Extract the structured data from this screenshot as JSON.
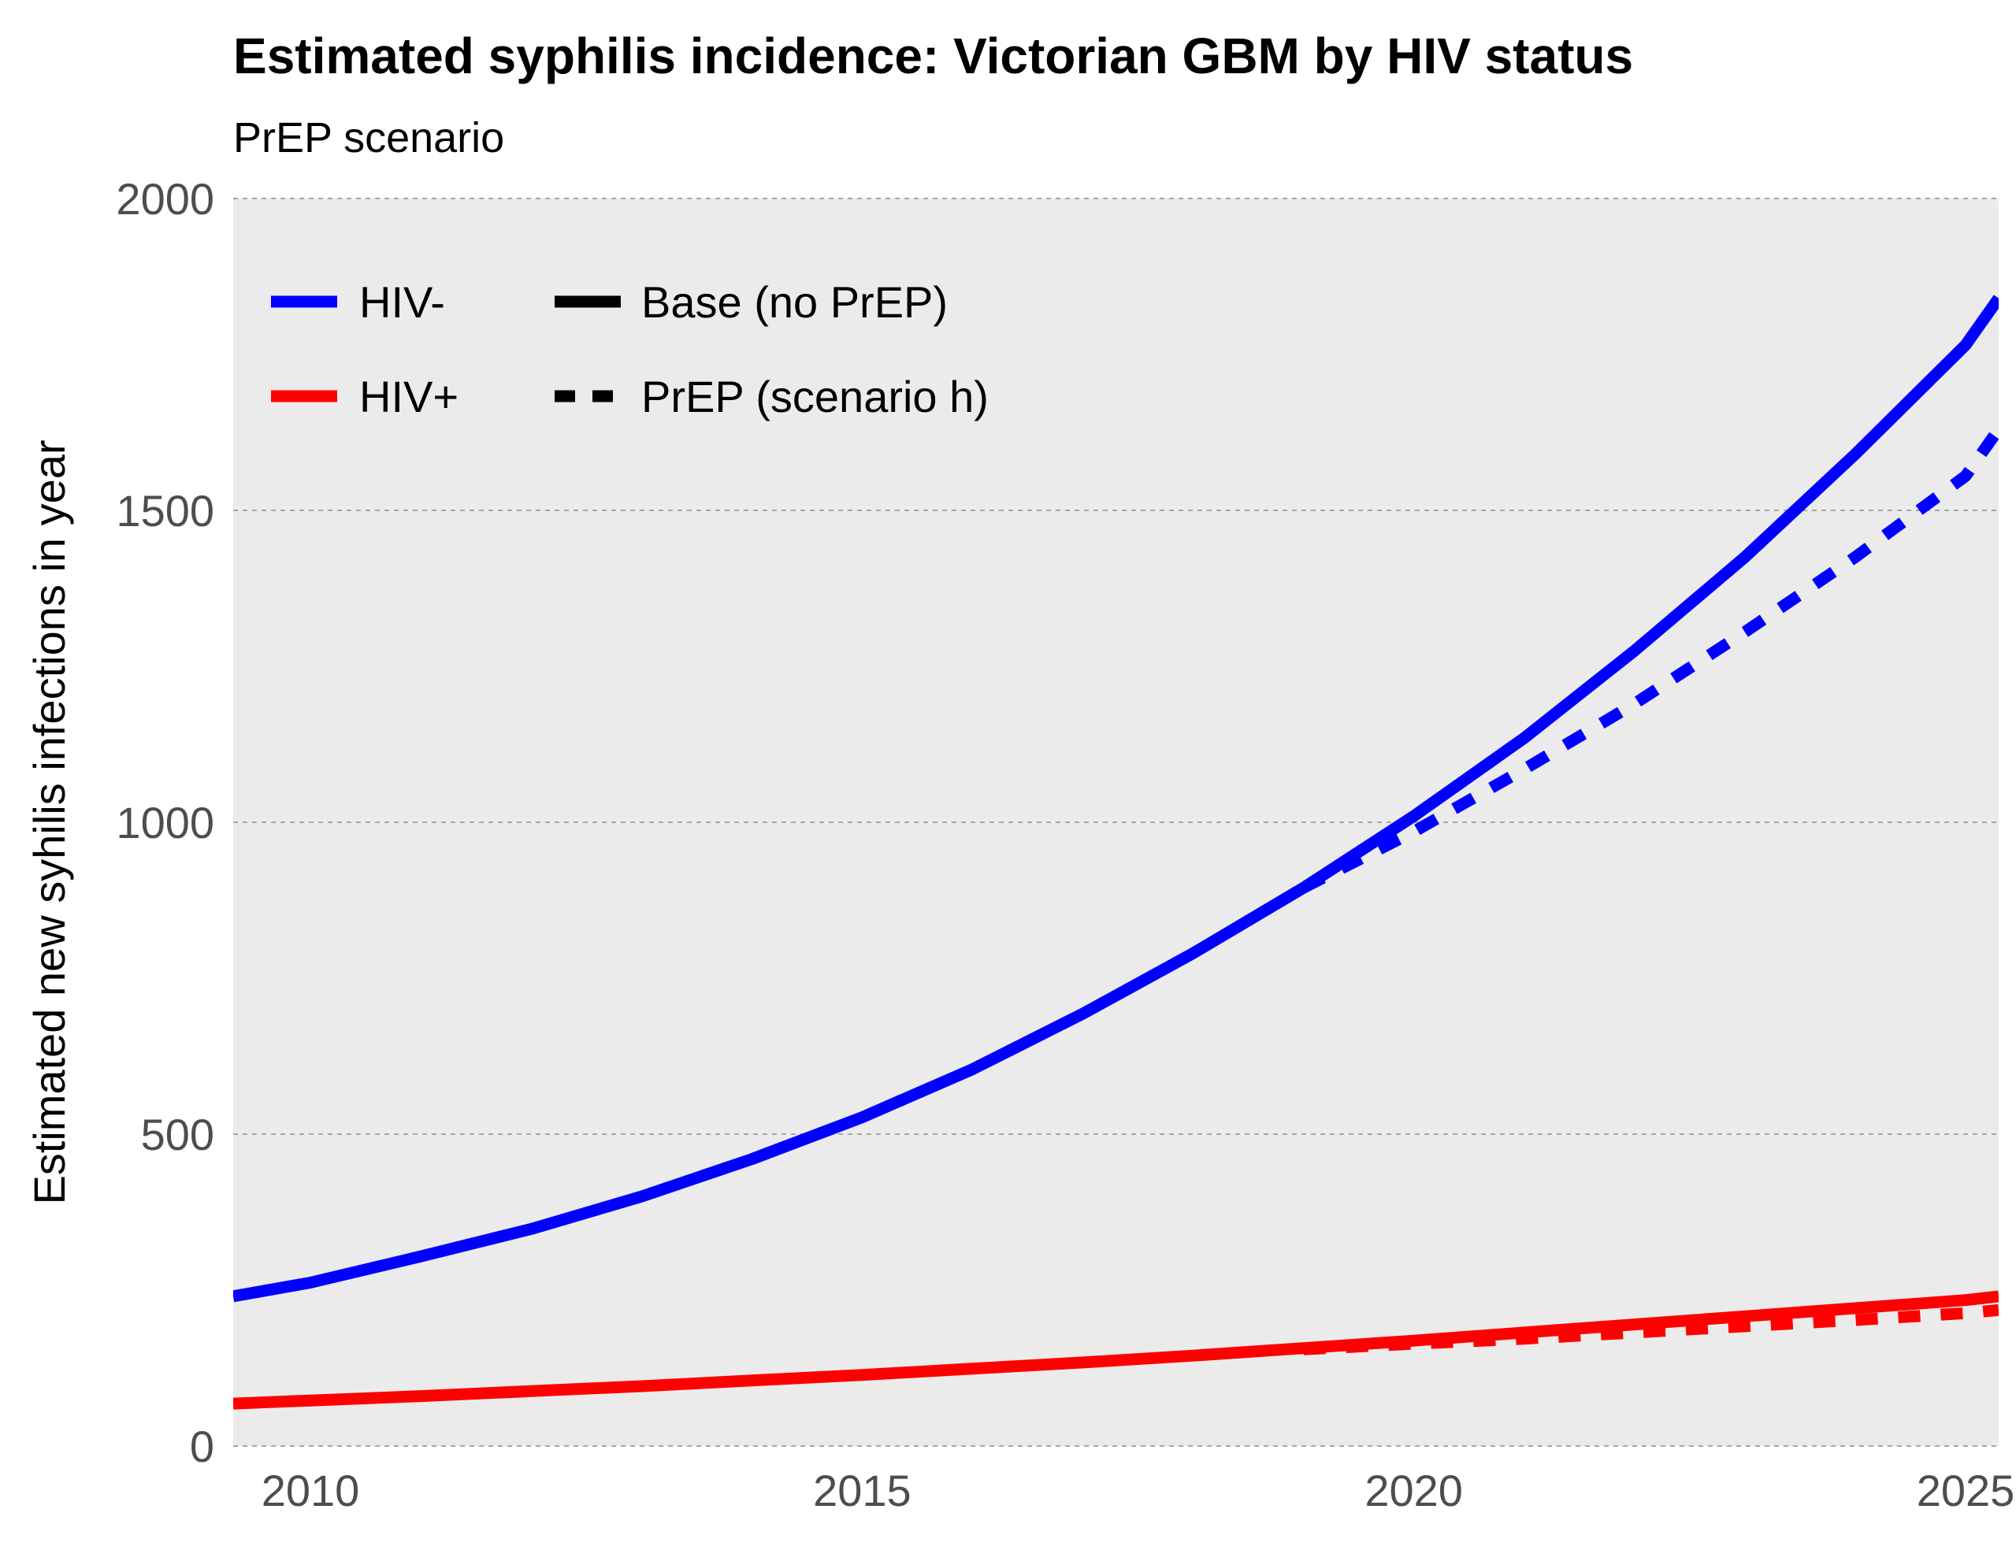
{
  "chart_data": {
    "type": "line",
    "title": "Estimated syphilis incidence: Victorian GBM by HIV status",
    "subtitle": "PrEP scenario",
    "xlabel": "",
    "ylabel": "Estimated new syhilis infections in year",
    "xlim": [
      2009.3,
      2025.3
    ],
    "ylim": [
      0,
      2000
    ],
    "x_ticks": [
      2010,
      2015,
      2020,
      2025
    ],
    "y_ticks": [
      0,
      500,
      1000,
      1500,
      2000
    ],
    "grid": true,
    "legend_position": "top-left",
    "legend": {
      "colour_entries": [
        {
          "label": "HIV-",
          "color": "#0000FF"
        },
        {
          "label": "HIV+",
          "color": "#FF0000"
        }
      ],
      "linetype_entries": [
        {
          "label": "Base (no PrEP)",
          "linetype": "solid"
        },
        {
          "label": "PrEP (scenario h)",
          "linetype": "dashed"
        }
      ]
    },
    "series": [
      {
        "group": "HIV-",
        "scenario": "Base (no PrEP)",
        "color": "#0000FF",
        "linetype": "solid",
        "x": [
          2009.3,
          2010,
          2011,
          2012,
          2013,
          2014,
          2015,
          2016,
          2017,
          2018,
          2019,
          2020,
          2021,
          2022,
          2023,
          2024,
          2025,
          2025.3
        ],
        "y": [
          240,
          262,
          304,
          348,
          400,
          460,
          527,
          604,
          693,
          790,
          895,
          1010,
          1135,
          1275,
          1425,
          1590,
          1765,
          1840
        ]
      },
      {
        "group": "HIV-",
        "scenario": "PrEP (scenario h)",
        "color": "#0000FF",
        "linetype": "dashed",
        "x": [
          2019,
          2020,
          2021,
          2022,
          2023,
          2024,
          2025,
          2025.3
        ],
        "y": [
          895,
          985,
          1085,
          1190,
          1305,
          1425,
          1555,
          1630
        ]
      },
      {
        "group": "HIV+",
        "scenario": "Base (no PrEP)",
        "color": "#FF0000",
        "linetype": "solid",
        "x": [
          2009.3,
          2010,
          2011,
          2012,
          2013,
          2014,
          2015,
          2016,
          2017,
          2018,
          2019,
          2020,
          2021,
          2022,
          2023,
          2024,
          2025,
          2025.3
        ],
        "y": [
          68,
          73,
          80,
          88,
          96,
          105,
          114,
          124,
          134,
          145,
          157,
          169,
          182,
          195,
          208,
          221,
          234,
          240
        ]
      },
      {
        "group": "HIV+",
        "scenario": "PrEP (scenario h)",
        "color": "#FF0000",
        "linetype": "dashed",
        "x": [
          2019,
          2020,
          2021,
          2022,
          2023,
          2024,
          2025,
          2025.3
        ],
        "y": [
          155,
          164,
          172,
          182,
          192,
          202,
          213,
          218
        ]
      }
    ]
  }
}
